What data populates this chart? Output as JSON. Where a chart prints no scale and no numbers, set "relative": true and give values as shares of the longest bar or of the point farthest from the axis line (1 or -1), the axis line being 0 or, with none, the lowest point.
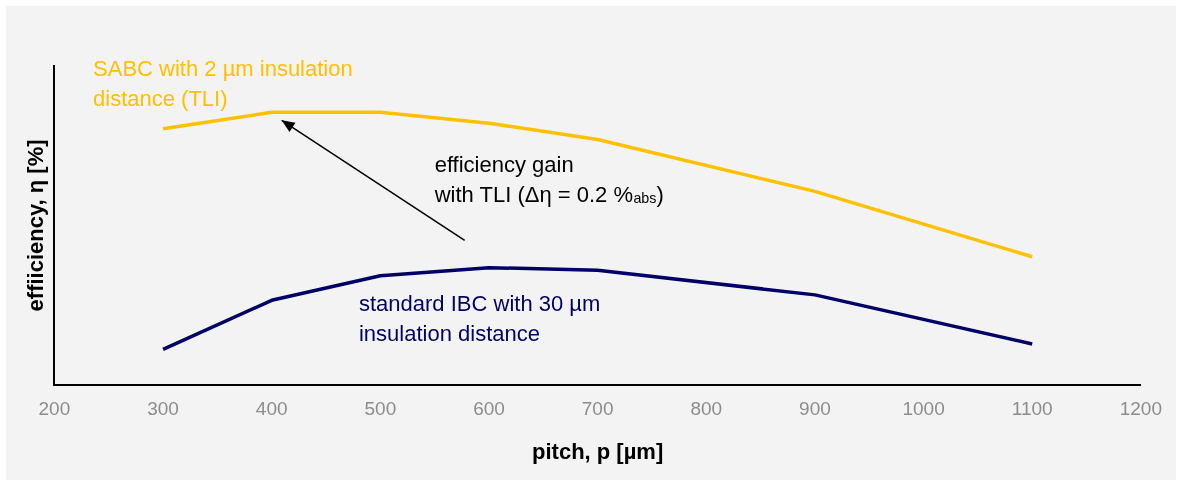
{
  "chart_data": {
    "type": "line",
    "relative": true,
    "xlabel": "pitch, p [µm]",
    "ylabel": "effiiciency, η [%]",
    "xlim": [
      200,
      1200
    ],
    "xticks": [
      200,
      300,
      400,
      500,
      600,
      700,
      800,
      900,
      1000,
      1100,
      1200
    ],
    "tick_labels": "x",
    "grid": false,
    "legend": false,
    "marker": "none",
    "line_style": "solid",
    "annotations": [
      "efficiency gain with TLI (Δη = 0.2 %$_{abs}$)"
    ],
    "series": [
      {
        "name": "SABC with 2 µm insulation distance (TLI)",
        "color": "#ffc000",
        "x": [
          300,
          400,
          500,
          600,
          700,
          900,
          1100
        ],
        "values": [
          0.94,
          1.0,
          1.0,
          0.96,
          0.9,
          0.71,
          0.47
        ]
      },
      {
        "name": "standard IBC with 30 µm insulation distance",
        "color": "#000066",
        "x": [
          300,
          400,
          500,
          600,
          700,
          900,
          1100
        ],
        "values": [
          0.13,
          0.31,
          0.4,
          0.43,
          0.42,
          0.33,
          0.15
        ]
      }
    ]
  }
}
